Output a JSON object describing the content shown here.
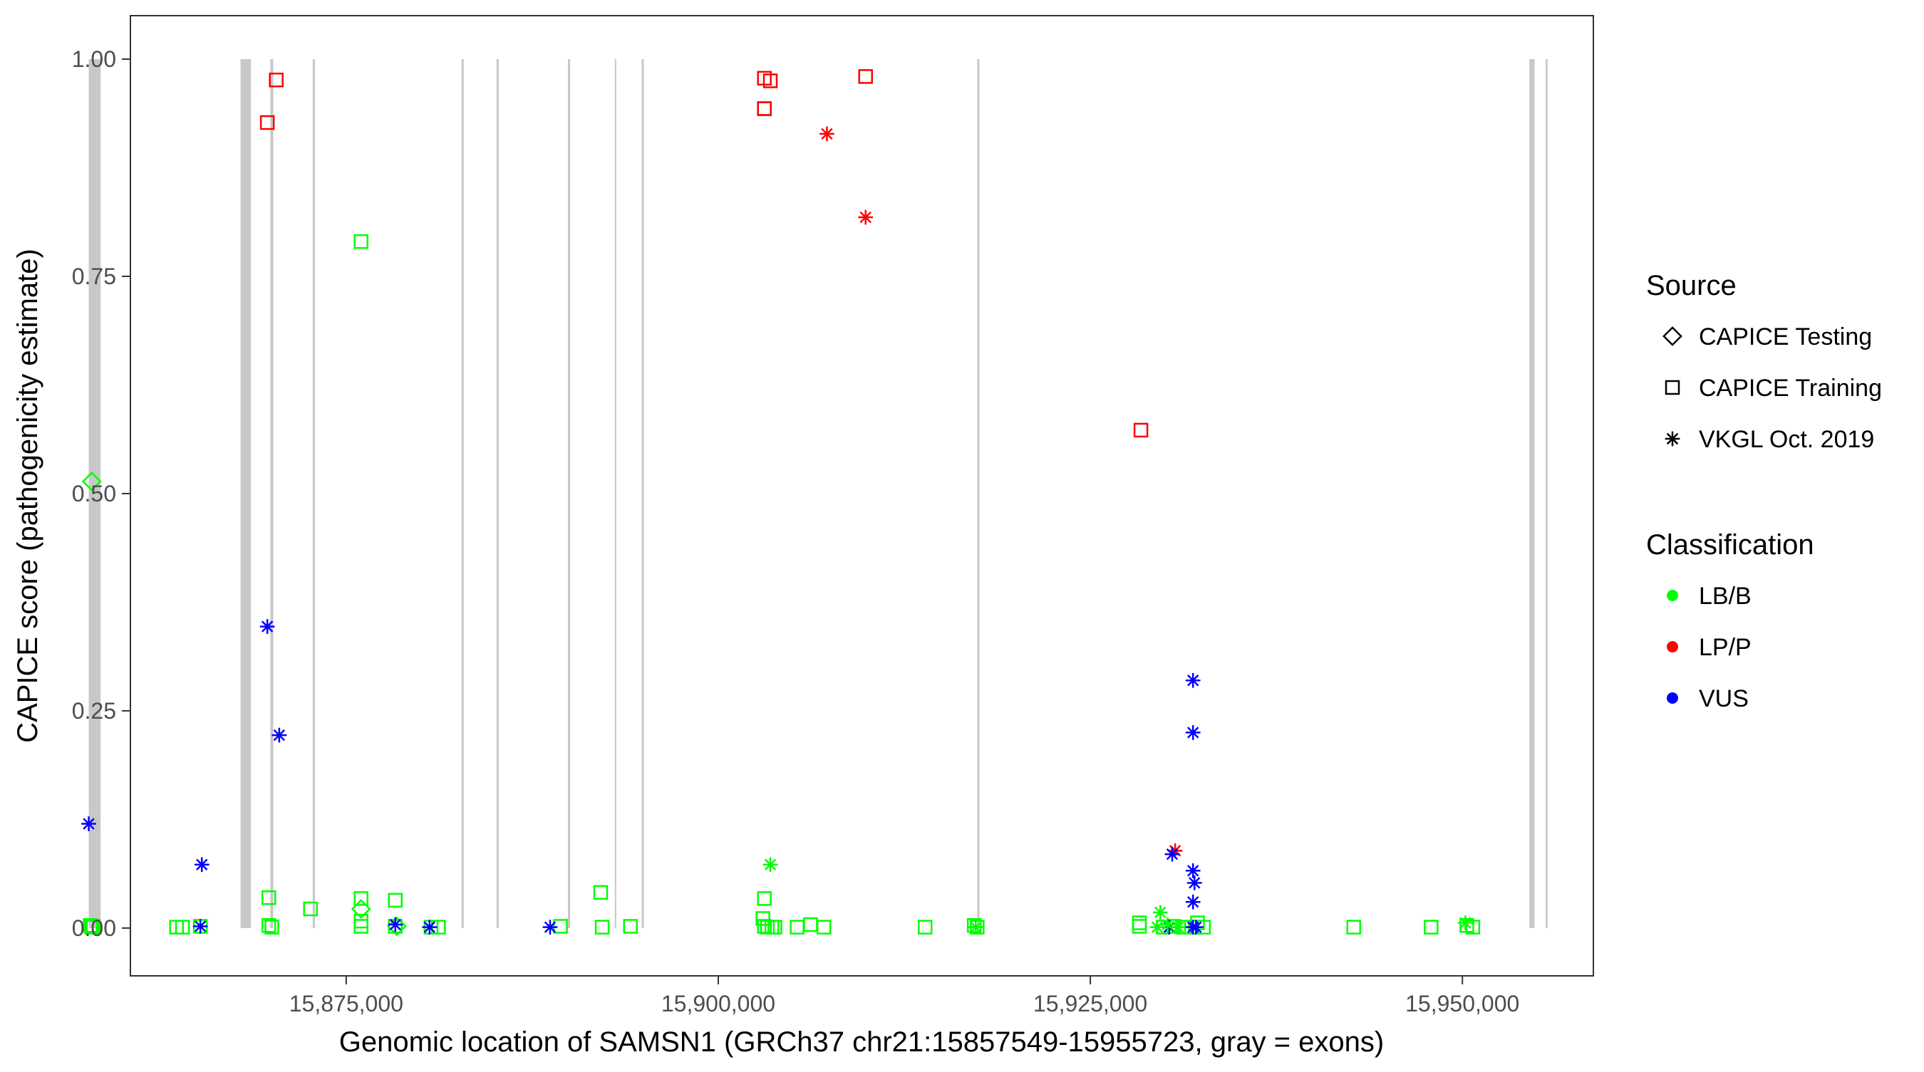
{
  "chart_data": {
    "type": "scatter",
    "xlabel": "Genomic location of SAMSN1 (GRCh37 chr21:15857549-15955723, gray = exons)",
    "ylabel": "CAPICE score (pathogenicity estimate)",
    "xlim": [
      15857549,
      15955723
    ],
    "ylim": [
      0,
      1
    ],
    "x_ticks": [
      {
        "value": 15875000,
        "label": "15,875,000"
      },
      {
        "value": 15900000,
        "label": "15,900,000"
      },
      {
        "value": 15925000,
        "label": "15,925,000"
      },
      {
        "value": 15950000,
        "label": "15,950,000"
      }
    ],
    "y_ticks": [
      {
        "value": 0,
        "label": "0.00"
      },
      {
        "value": 0.25,
        "label": "0.25"
      },
      {
        "value": 0.5,
        "label": "0.50"
      },
      {
        "value": 0.75,
        "label": "0.75"
      },
      {
        "value": 1.0,
        "label": "1.00"
      }
    ],
    "grid": false,
    "exons": [
      {
        "start": 15857700,
        "end": 15858500
      },
      {
        "start": 15867900,
        "end": 15868600
      },
      {
        "start": 15869900,
        "end": 15870100
      },
      {
        "start": 15872750,
        "end": 15872900
      },
      {
        "start": 15882750,
        "end": 15882900
      },
      {
        "start": 15885100,
        "end": 15885250
      },
      {
        "start": 15889900,
        "end": 15890050
      },
      {
        "start": 15893050,
        "end": 15893150
      },
      {
        "start": 15894850,
        "end": 15895000
      },
      {
        "start": 15917400,
        "end": 15917550
      },
      {
        "start": 15954500,
        "end": 15954850
      },
      {
        "start": 15955600,
        "end": 15955723
      }
    ],
    "legend": {
      "position": "right",
      "source_title": "Source",
      "source_entries": [
        {
          "label": "CAPICE Testing",
          "shape": "diamond"
        },
        {
          "label": "CAPICE Training",
          "shape": "square"
        },
        {
          "label": "VKGL Oct. 2019",
          "shape": "asterisk"
        }
      ],
      "class_title": "Classification",
      "class_entries": [
        {
          "label": "LB/B",
          "color": "#00ff00"
        },
        {
          "label": "LP/P",
          "color": "#ff0000"
        },
        {
          "label": "VUS",
          "color": "#0000ff"
        }
      ]
    },
    "series": [
      {
        "source": "CAPICE Training",
        "classification": "LP/P",
        "points": [
          [
            15869700,
            0.927
          ],
          [
            15870300,
            0.976
          ],
          [
            15903100,
            0.978
          ],
          [
            15903500,
            0.975
          ],
          [
            15903100,
            0.943
          ],
          [
            15903100,
            0.943
          ],
          [
            15909900,
            0.98
          ],
          [
            15928400,
            0.573
          ]
        ]
      },
      {
        "source": "CAPICE Training",
        "classification": "LB/B",
        "points": [
          [
            15857800,
            0.003
          ],
          [
            15858000,
            0.002
          ],
          [
            15857900,
            0.001
          ],
          [
            15863600,
            0.001
          ],
          [
            15864000,
            0.001
          ],
          [
            15865200,
            0.002
          ],
          [
            15869800,
            0.035
          ],
          [
            15869800,
            0.003
          ],
          [
            15870000,
            0.001
          ],
          [
            15872600,
            0.022
          ],
          [
            15876000,
            0.79
          ],
          [
            15876000,
            0.034
          ],
          [
            15876000,
            0.008
          ],
          [
            15876000,
            0.002
          ],
          [
            15878300,
            0.032
          ],
          [
            15878300,
            0.002
          ],
          [
            15880700,
            0.001
          ],
          [
            15881200,
            0.001
          ],
          [
            15889400,
            0.002
          ],
          [
            15892100,
            0.041
          ],
          [
            15892200,
            0.001
          ],
          [
            15894100,
            0.002
          ],
          [
            15903100,
            0.034
          ],
          [
            15903000,
            0.011
          ],
          [
            15903100,
            0.002
          ],
          [
            15903300,
            0.001
          ],
          [
            15903600,
            0.001
          ],
          [
            15903800,
            0.001
          ],
          [
            15905300,
            0.001
          ],
          [
            15906200,
            0.004
          ],
          [
            15907100,
            0.001
          ],
          [
            15913900,
            0.001
          ],
          [
            15917200,
            0.003
          ],
          [
            15917400,
            0.001
          ],
          [
            15928300,
            0.006
          ],
          [
            15928300,
            0.002
          ],
          [
            15929900,
            0.001
          ],
          [
            15930600,
            0.002
          ],
          [
            15931200,
            0.001
          ],
          [
            15931800,
            0.001
          ],
          [
            15932200,
            0.006
          ],
          [
            15932600,
            0.001
          ],
          [
            15942700,
            0.001
          ],
          [
            15947900,
            0.001
          ],
          [
            15950300,
            0.003
          ],
          [
            15950700,
            0.001
          ]
        ]
      },
      {
        "source": "CAPICE Testing",
        "classification": "LB/B",
        "points": [
          [
            15857900,
            0.514
          ],
          [
            15876000,
            0.022
          ],
          [
            15878400,
            0.002
          ]
        ]
      },
      {
        "source": "VKGL Oct. 2019",
        "classification": "LP/P",
        "points": [
          [
            15907300,
            0.914
          ],
          [
            15909900,
            0.818
          ],
          [
            15930700,
            0.089
          ]
        ]
      },
      {
        "source": "VKGL Oct. 2019",
        "classification": "VUS",
        "points": [
          [
            15857700,
            0.12
          ],
          [
            15865300,
            0.073
          ],
          [
            15865200,
            0.002
          ],
          [
            15869700,
            0.347
          ],
          [
            15870500,
            0.222
          ],
          [
            15878300,
            0.004
          ],
          [
            15880600,
            0.001
          ],
          [
            15888700,
            0.001
          ],
          [
            15930500,
            0.085
          ],
          [
            15931900,
            0.285
          ],
          [
            15931900,
            0.225
          ],
          [
            15931900,
            0.066
          ],
          [
            15932000,
            0.052
          ],
          [
            15931900,
            0.03
          ],
          [
            15931900,
            0.001
          ],
          [
            15932100,
            0.001
          ],
          [
            15930300,
            0.001
          ]
        ]
      },
      {
        "source": "VKGL Oct. 2019",
        "classification": "LB/B",
        "points": [
          [
            15903500,
            0.073
          ],
          [
            15929700,
            0.018
          ],
          [
            15929500,
            0.001
          ],
          [
            15930200,
            0.004
          ],
          [
            15930900,
            0.001
          ],
          [
            15950200,
            0.006
          ],
          [
            15917300,
            0.001
          ]
        ]
      }
    ]
  }
}
